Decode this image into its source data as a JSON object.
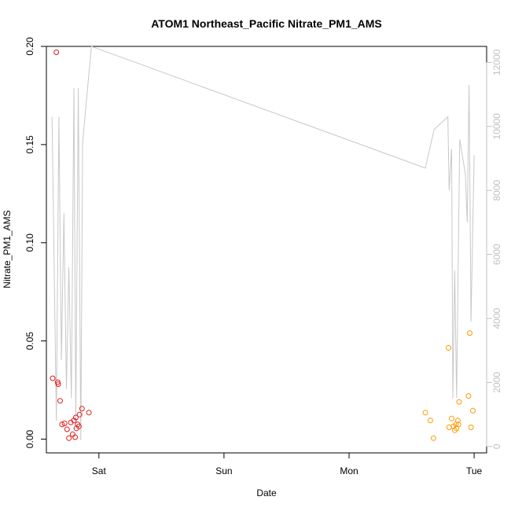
{
  "chart_data": {
    "type": "scatter",
    "title": "ATOM1 Northeast_Pacific Nitrate_PM1_AMS",
    "xlabel": "Date",
    "ylabel": "Nitrate_PM1_AMS",
    "x_ticks": [
      {
        "label": "Sat",
        "value": 1.0
      },
      {
        "label": "Sun",
        "value": 2.0
      },
      {
        "label": "Mon",
        "value": 3.0
      },
      {
        "label": "Tue",
        "value": 4.0
      }
    ],
    "xlim": [
      0.58,
      4.1
    ],
    "ylim": [
      -0.007,
      0.2
    ],
    "y_ticks": [
      {
        "label": "0.00",
        "value": 0.0
      },
      {
        "label": "0.05",
        "value": 0.05
      },
      {
        "label": "0.10",
        "value": 0.1
      },
      {
        "label": "0.15",
        "value": 0.15
      },
      {
        "label": "0.20",
        "value": 0.2
      }
    ],
    "y2lim": [
      -200,
      12500
    ],
    "y2_ticks": [
      {
        "label": "0",
        "value": 0
      },
      {
        "label": "2000",
        "value": 2000
      },
      {
        "label": "4000",
        "value": 4000
      },
      {
        "label": "6000",
        "value": 6000
      },
      {
        "label": "8000",
        "value": 8000
      },
      {
        "label": "10000",
        "value": 10000
      },
      {
        "label": "12000",
        "value": 12000
      }
    ],
    "grid": false,
    "colors": {
      "series_a": "#e41a1c",
      "series_b": "#ff9900",
      "altitude_line": "#c8c8c8",
      "right_axis": "#c0c0c0"
    },
    "series": [
      {
        "color": "#e41a1c",
        "points": [
          {
            "x": 0.63,
            "y": 0.031
          },
          {
            "x": 0.66,
            "y": 0.197
          },
          {
            "x": 0.67,
            "y": 0.029
          },
          {
            "x": 0.675,
            "y": 0.028
          },
          {
            "x": 0.69,
            "y": 0.0195
          },
          {
            "x": 0.705,
            "y": 0.0075
          },
          {
            "x": 0.725,
            "y": 0.008
          },
          {
            "x": 0.745,
            "y": 0.005
          },
          {
            "x": 0.76,
            "y": 0.0005
          },
          {
            "x": 0.775,
            "y": 0.0085
          },
          {
            "x": 0.79,
            "y": 0.0025
          },
          {
            "x": 0.8,
            "y": 0.0095
          },
          {
            "x": 0.81,
            "y": 0.001
          },
          {
            "x": 0.815,
            "y": 0.011
          },
          {
            "x": 0.82,
            "y": 0.0055
          },
          {
            "x": 0.83,
            "y": 0.0075
          },
          {
            "x": 0.84,
            "y": 0.0065
          },
          {
            "x": 0.845,
            "y": 0.0125
          },
          {
            "x": 0.865,
            "y": 0.0155
          },
          {
            "x": 0.92,
            "y": 0.0135
          }
        ]
      },
      {
        "color": "#ff9900",
        "points": [
          {
            "x": 3.61,
            "y": 0.0135
          },
          {
            "x": 3.65,
            "y": 0.0095
          },
          {
            "x": 3.675,
            "y": 0.0005
          },
          {
            "x": 3.795,
            "y": 0.0465
          },
          {
            "x": 3.8,
            "y": 0.006
          },
          {
            "x": 3.82,
            "y": 0.0105
          },
          {
            "x": 3.835,
            "y": 0.0065
          },
          {
            "x": 3.845,
            "y": 0.0045
          },
          {
            "x": 3.855,
            "y": 0.0075
          },
          {
            "x": 3.86,
            "y": 0.0055
          },
          {
            "x": 3.87,
            "y": 0.0095
          },
          {
            "x": 3.875,
            "y": 0.0075
          },
          {
            "x": 3.88,
            "y": 0.019
          },
          {
            "x": 3.955,
            "y": 0.022
          },
          {
            "x": 3.965,
            "y": 0.054
          },
          {
            "x": 3.975,
            "y": 0.006
          },
          {
            "x": 3.99,
            "y": 0.0145
          }
        ]
      }
    ],
    "altitude_line": [
      {
        "x": 0.625,
        "y": 10300
      },
      {
        "x": 0.66,
        "y": 800
      },
      {
        "x": 0.68,
        "y": 10300
      },
      {
        "x": 0.7,
        "y": 2700
      },
      {
        "x": 0.72,
        "y": 7300
      },
      {
        "x": 0.74,
        "y": 1800
      },
      {
        "x": 0.76,
        "y": 5600
      },
      {
        "x": 0.78,
        "y": 1500
      },
      {
        "x": 0.8,
        "y": 11200
      },
      {
        "x": 0.815,
        "y": 800
      },
      {
        "x": 0.835,
        "y": 11200
      },
      {
        "x": 0.855,
        "y": 200
      },
      {
        "x": 0.87,
        "y": 9500
      },
      {
        "x": 0.94,
        "y": 12500
      },
      {
        "x": 3.61,
        "y": 8700
      },
      {
        "x": 3.68,
        "y": 9900
      },
      {
        "x": 3.79,
        "y": 10300
      },
      {
        "x": 3.8,
        "y": 8000
      },
      {
        "x": 3.82,
        "y": 9300
      },
      {
        "x": 3.83,
        "y": 1500
      },
      {
        "x": 3.845,
        "y": 5500
      },
      {
        "x": 3.86,
        "y": 1500
      },
      {
        "x": 3.885,
        "y": 9600
      },
      {
        "x": 3.93,
        "y": 8500
      },
      {
        "x": 3.945,
        "y": 7000
      },
      {
        "x": 3.96,
        "y": 11300
      },
      {
        "x": 3.975,
        "y": 3900
      },
      {
        "x": 4.0,
        "y": 9100
      }
    ]
  }
}
